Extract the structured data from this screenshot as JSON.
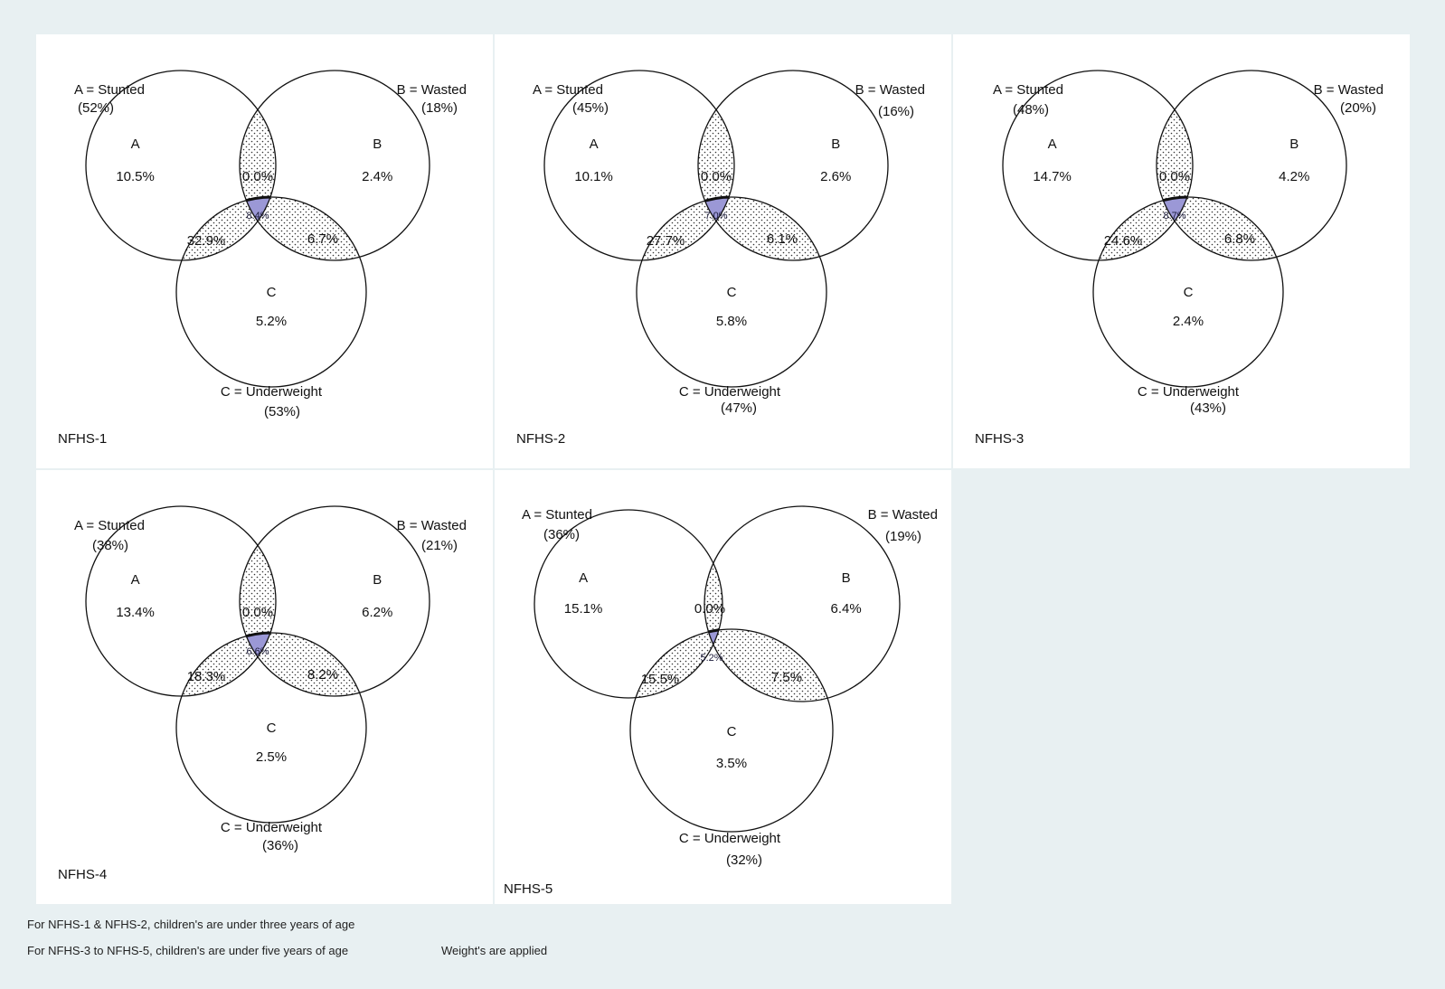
{
  "panels": [
    {
      "id": "nfhs1",
      "name": "NFHS-1",
      "a_label": "A = Stunted",
      "a_pct": "(52%)",
      "b_label": "B = Wasted",
      "b_pct": "(18%)",
      "c_label": "C = Underweight",
      "c_pct": "(53%)",
      "a_letter": "A",
      "b_letter": "B",
      "c_letter": "C",
      "a_only": "10.5%",
      "b_only": "2.4%",
      "c_only": "5.2%",
      "ab": "0.0%",
      "ac": "32.9%",
      "bc": "6.7%",
      "abc": "8.4%"
    },
    {
      "id": "nfhs2",
      "name": "NFHS-2",
      "a_label": "A = Stunted",
      "a_pct": "(45%)",
      "b_label": "B = Wasted",
      "b_pct": "(16%)",
      "c_label": "C = Underweight",
      "c_pct": "(47%)",
      "a_letter": "A",
      "b_letter": "B",
      "c_letter": "C",
      "a_only": "10.1%",
      "b_only": "2.6%",
      "c_only": "5.8%",
      "ab": "0.0%",
      "ac": "27.7%",
      "bc": "6.1%",
      "abc": "7.0%"
    },
    {
      "id": "nfhs3",
      "name": "NFHS-3",
      "a_label": "A = Stunted",
      "a_pct": "(48%)",
      "b_label": "B = Wasted",
      "b_pct": "(20%)",
      "c_label": "C = Underweight",
      "c_pct": "(43%)",
      "a_letter": "A",
      "b_letter": "B",
      "c_letter": "C",
      "a_only": "14.7%",
      "b_only": "4.2%",
      "c_only": "2.4%",
      "ab": "0.0%",
      "ac": "24.6%",
      "bc": "6.8%",
      "abc": "8.7%"
    },
    {
      "id": "nfhs4",
      "name": "NFHS-4",
      "a_label": "A = Stunted",
      "a_pct": "(38%)",
      "b_label": "B = Wasted",
      "b_pct": "(21%)",
      "c_label": "C = Underweight",
      "c_pct": "(36%)",
      "a_letter": "A",
      "b_letter": "B",
      "c_letter": "C",
      "a_only": "13.4%",
      "b_only": "6.2%",
      "c_only": "2.5%",
      "ab": "0.0%",
      "ac": "18.3%",
      "bc": "8.2%",
      "abc": "6.6%"
    },
    {
      "id": "nfhs5",
      "name": "NFHS-5",
      "a_label": "A = Stunted",
      "a_pct": "(36%)",
      "b_label": "B = Wasted",
      "b_pct": "(19%)",
      "c_label": "C = Underweight",
      "c_pct": "(32%)",
      "a_letter": "A",
      "b_letter": "B",
      "c_letter": "C",
      "a_only": "15.1%",
      "b_only": "6.4%",
      "c_only": "3.5%",
      "ab": "0.0%",
      "ac": "15.5%",
      "bc": "7.5%",
      "abc": "5.2%"
    }
  ],
  "footnotes": {
    "note1": "For NFHS-1 & NFHS-2, children's are under three years of age",
    "note2": "For NFHS-3 to NFHS-5, children's are under five years of age",
    "note3": "Weight's are applied"
  },
  "colors": {
    "center_fill": "#9b98d6",
    "background": "#e8f0f2",
    "panel": "#ffffff"
  }
}
